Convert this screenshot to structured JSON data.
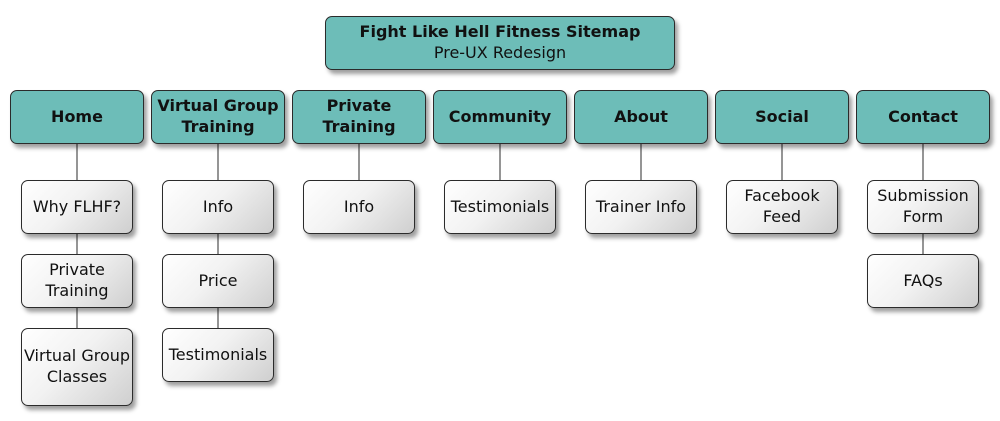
{
  "title": {
    "main": "Fight Like Hell Fitness Sitemap",
    "subtitle": "Pre-UX Redesign"
  },
  "colors": {
    "section_fill": "#6dbdb8",
    "page_fill": "#f2f2f2",
    "connector": "#2b2b2b"
  },
  "sections": [
    {
      "label": "Home",
      "pages": [
        "Why FLHF?",
        "Private Training",
        "Virtual Group Classes"
      ]
    },
    {
      "label": "Virtual Group Training",
      "pages": [
        "Info",
        "Price",
        "Testimonials"
      ]
    },
    {
      "label": "Private Training",
      "pages": [
        "Info"
      ]
    },
    {
      "label": "Community",
      "pages": [
        "Testimonials"
      ]
    },
    {
      "label": "About",
      "pages": [
        "Trainer Info"
      ]
    },
    {
      "label": "Social",
      "pages": [
        "Facebook Feed"
      ]
    },
    {
      "label": "Contact",
      "pages": [
        "Submission Form",
        "FAQs"
      ]
    }
  ]
}
